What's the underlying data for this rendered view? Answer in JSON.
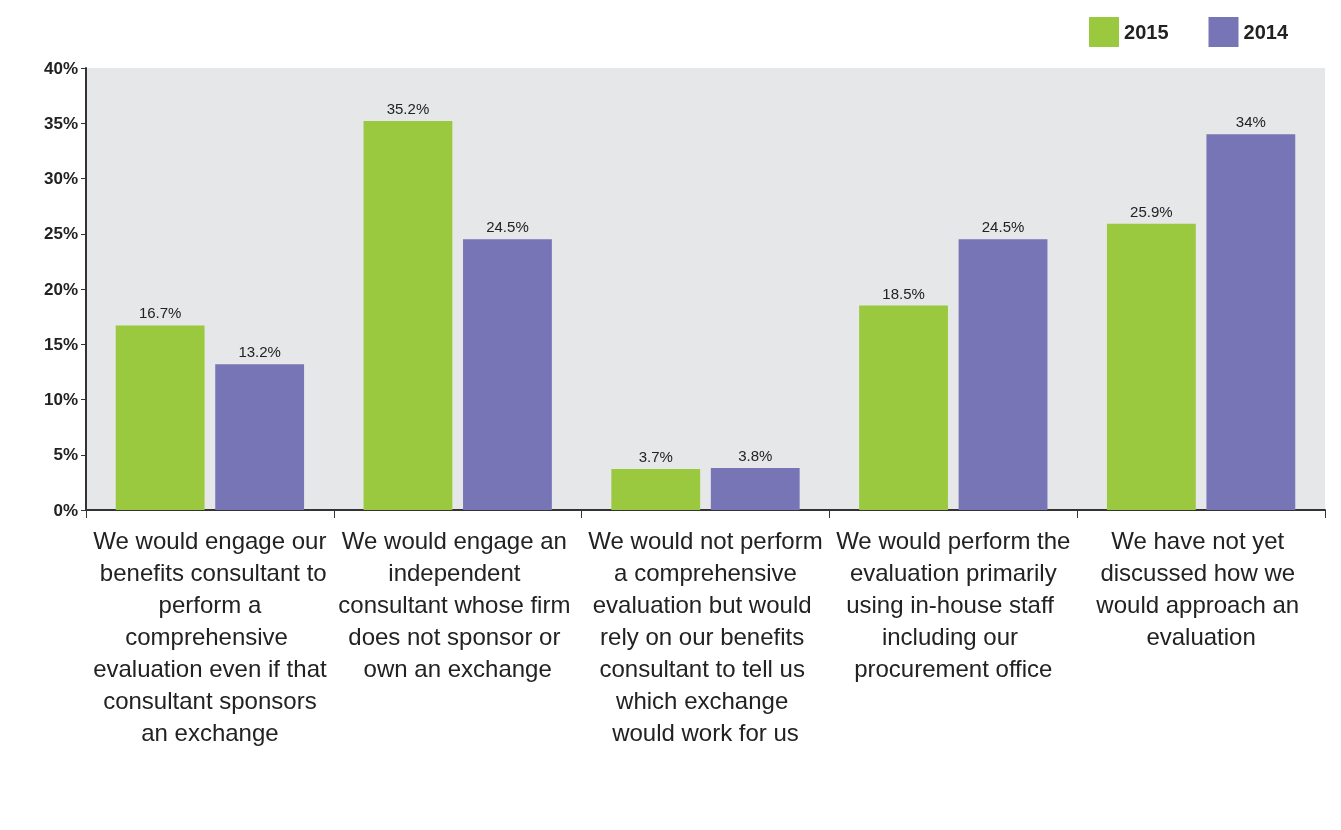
{
  "chart_data": {
    "type": "bar",
    "categories": [
      "We would engage our benefits consultant to perform a comprehensive evaluation even if that consultant sponsors an exchange",
      "We would engage an independent consultant whose firm does not sponsor or own an exchange",
      "We would not perform a comprehensive evaluation but would rely on our benefits consultant to tell us which exchange would work for us",
      "We would perform the evaluation primarily using in-house staff including our procurement office",
      "We have not yet discussed how we would approach an evaluation"
    ],
    "series": [
      {
        "name": "2015",
        "color": "#9ac83f",
        "values": [
          16.7,
          35.2,
          3.7,
          18.5,
          25.9
        ],
        "value_labels": [
          "16.7%",
          "35.2%",
          "3.7%",
          "18.5%",
          "25.9%"
        ]
      },
      {
        "name": "2014",
        "color": "#7775b5",
        "values": [
          13.2,
          24.5,
          3.8,
          24.5,
          34
        ],
        "value_labels": [
          "13.2%",
          "24.5%",
          "3.8%",
          "24.5%",
          "34%"
        ]
      }
    ],
    "ylim": [
      0,
      40
    ],
    "yticks": [
      {
        "value": 0,
        "label": "0%"
      },
      {
        "value": 5,
        "label": "5%"
      },
      {
        "value": 10,
        "label": "10%"
      },
      {
        "value": 15,
        "label": "15%"
      },
      {
        "value": 20,
        "label": "20%"
      },
      {
        "value": 25,
        "label": "25%"
      },
      {
        "value": 30,
        "label": "30%"
      },
      {
        "value": 35,
        "label": "35%"
      },
      {
        "value": 40,
        "label": "40%"
      }
    ],
    "grid": false,
    "legend": "top right"
  }
}
